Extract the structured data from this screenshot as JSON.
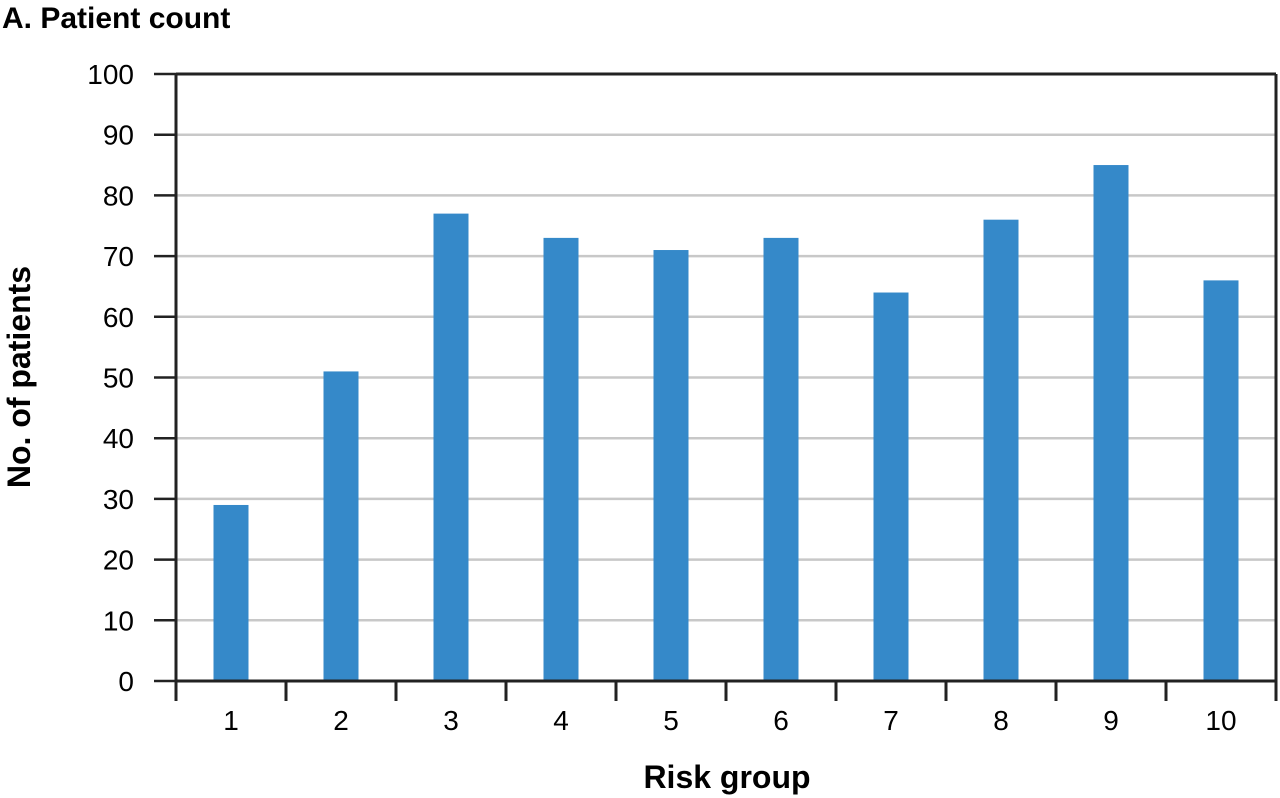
{
  "chart_data": {
    "type": "bar",
    "title": "A. Patient count",
    "xlabel": "Risk group",
    "ylabel": "No. of patients",
    "categories": [
      "1",
      "2",
      "3",
      "4",
      "5",
      "6",
      "7",
      "8",
      "9",
      "10"
    ],
    "values": [
      29,
      51,
      77,
      73,
      71,
      73,
      64,
      76,
      85,
      66
    ],
    "ylim": [
      0,
      100
    ],
    "yticks": [
      "0",
      "10",
      "20",
      "30",
      "40",
      "50",
      "60",
      "70",
      "80",
      "90",
      "100"
    ],
    "grid": true,
    "legend": "none",
    "bar_color": "#3589C9",
    "grid_color": "#C8C8C8",
    "axis_color": "#222222"
  }
}
